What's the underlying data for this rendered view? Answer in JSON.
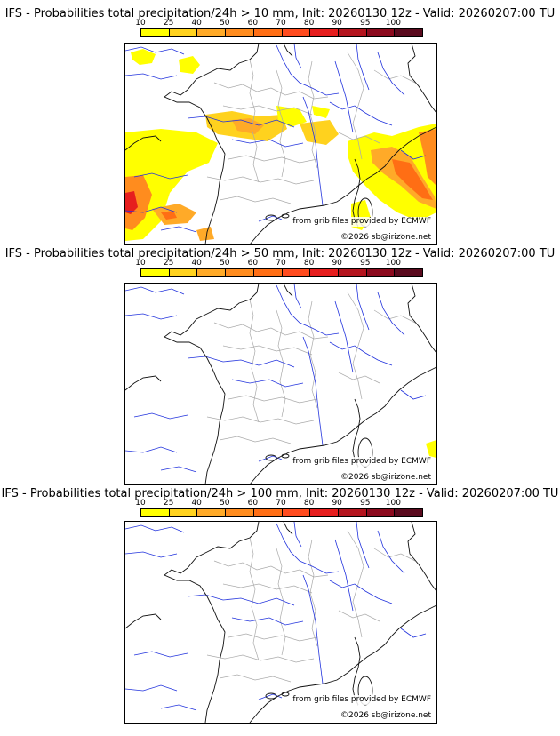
{
  "colors": {
    "scale": [
      "#ffff00",
      "#ffd21e",
      "#ffaa28",
      "#ff8c1e",
      "#ff6e14",
      "#ff4b1e",
      "#e61e1e",
      "#b4141e",
      "#8c0a1e",
      "#5a0a1e"
    ],
    "coast": "#111111",
    "rivers": "#2233dd",
    "borders": "#aaaaaa"
  },
  "legend": {
    "ticks": [
      "10",
      "25",
      "40",
      "50",
      "60",
      "70",
      "80",
      "90",
      "95",
      "100"
    ]
  },
  "panels": [
    {
      "title": "IFS - Probabilities total precipitation/24h > 10 mm, Init: 20260130 12z - Valid: 20260207:00 TU",
      "threshold_mm": 10,
      "source": "from grib files provided by ECMWF",
      "copyright": "©2026 sb@irizone.net"
    },
    {
      "title": "IFS - Probabilities total precipitation/24h > 50 mm, Init: 20260130 12z - Valid: 20260207:00 TU",
      "threshold_mm": 50,
      "source": "from grib files provided by ECMWF",
      "copyright": "©2026 sb@irizone.net"
    },
    {
      "title": "IFS - Probabilities total precipitation/24h > 100 mm, Init: 20260130 12z - Valid: 20260207:00 TU",
      "threshold_mm": 100,
      "source": "from grib files provided by ECMWF",
      "copyright": "©2026 sb@irizone.net"
    }
  ]
}
